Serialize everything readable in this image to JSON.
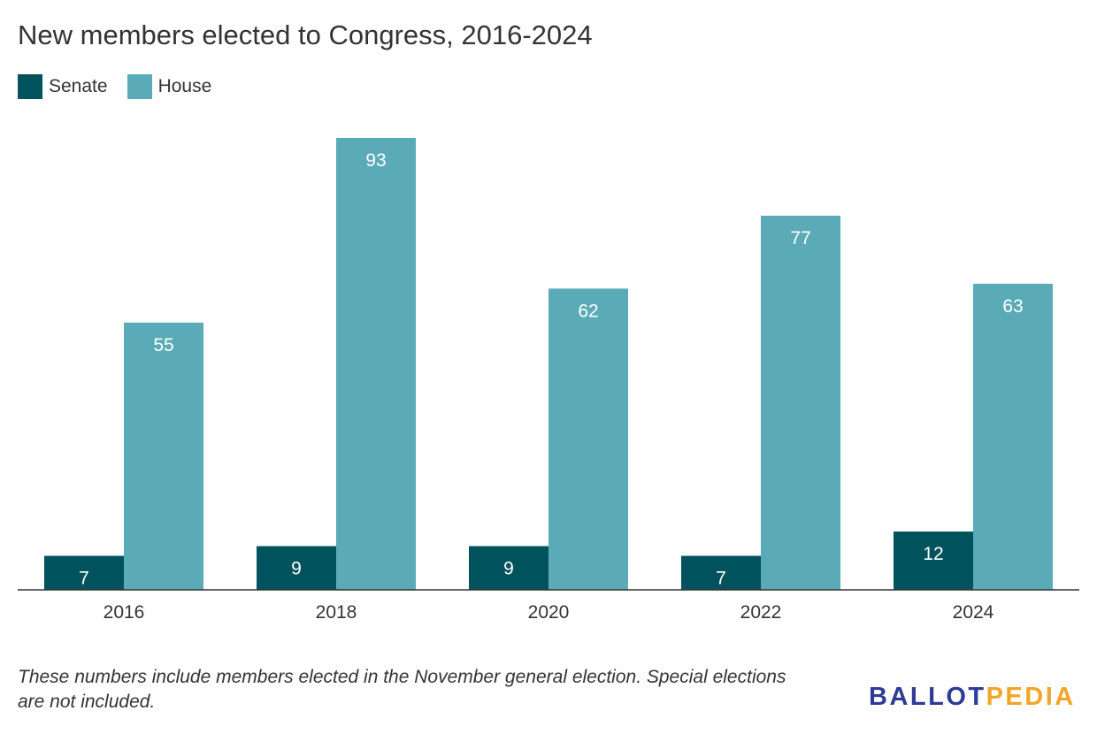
{
  "chart_data": {
    "type": "bar",
    "title": "New members elected to Congress, 2016-2024",
    "xlabel": "",
    "ylabel": "",
    "categories": [
      "2016",
      "2018",
      "2020",
      "2022",
      "2024"
    ],
    "series": [
      {
        "name": "Senate",
        "color": "#00535c",
        "values": [
          7,
          9,
          9,
          7,
          12
        ]
      },
      {
        "name": "House",
        "color": "#5aabb7",
        "values": [
          55,
          93,
          62,
          77,
          63
        ]
      }
    ],
    "ylim": [
      0,
      93
    ],
    "grid": false,
    "legend_position": "top-left",
    "data_labels": true
  },
  "footnote": "These numbers include members elected in the November general election. Special elections are not included.",
  "logo": {
    "part1": "BALLOT",
    "part2": "PEDIA",
    "color1": "#2f3b97",
    "color2": "#f1a62a"
  }
}
